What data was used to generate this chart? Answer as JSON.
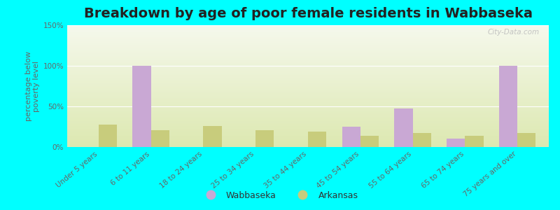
{
  "title": "Breakdown by age of poor female residents in Wabbaseka",
  "ylabel": "percentage below\npoverty level",
  "categories": [
    "Under 5 years",
    "6 to 11 years",
    "18 to 24 years",
    "25 to 34 years",
    "35 to 44 years",
    "45 to 54 years",
    "55 to 64 years",
    "65 to 74 years",
    "75 years and over"
  ],
  "wabbaseka": [
    0,
    100,
    0,
    0,
    0,
    25,
    47,
    10,
    100
  ],
  "arkansas": [
    28,
    21,
    26,
    21,
    19,
    14,
    17,
    14,
    17
  ],
  "wabbaseka_color": "#c9a8d4",
  "arkansas_color": "#c8cc7c",
  "background_color": "#00ffff",
  "ylim": [
    0,
    150
  ],
  "yticks": [
    0,
    50,
    100,
    150
  ],
  "ytick_labels": [
    "0%",
    "50%",
    "100%",
    "150%"
  ],
  "bar_width": 0.35,
  "title_fontsize": 14,
  "axis_label_fontsize": 8,
  "tick_fontsize": 7.5,
  "legend_labels": [
    "Wabbaseka",
    "Arkansas"
  ],
  "watermark": "City-Data.com",
  "gradient_top": "#f5f8ec",
  "gradient_bottom": "#dce8b0"
}
